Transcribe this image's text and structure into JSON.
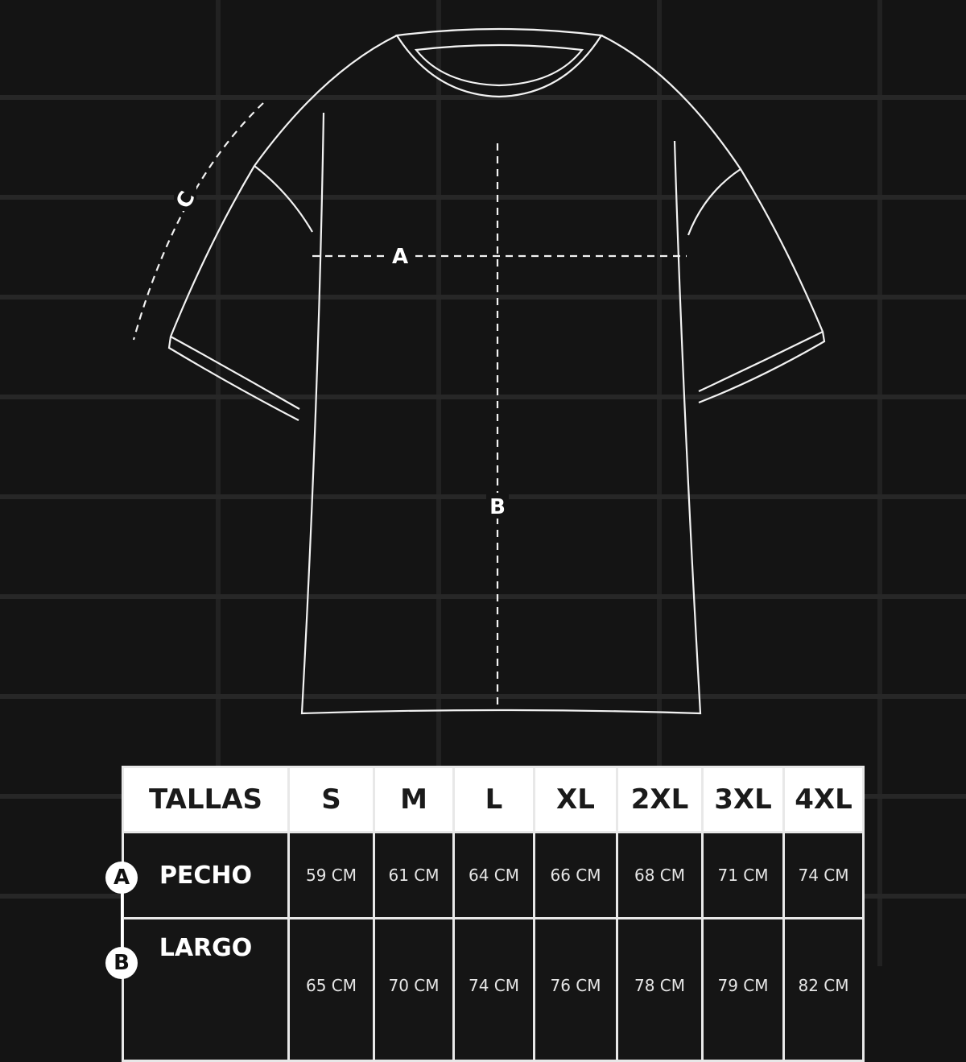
{
  "diagram": {
    "measure_labels": {
      "chest": "A",
      "length": "B",
      "sleeve": "C"
    }
  },
  "table": {
    "header_label": "TALLAS",
    "sizes": [
      "S",
      "M",
      "L",
      "XL",
      "2XL",
      "3XL",
      "4XL"
    ],
    "rows": [
      {
        "badge": "A",
        "label": "PECHO",
        "values": [
          "59 CM",
          "61 CM",
          "64 CM",
          "66 CM",
          "68 CM",
          "71 CM",
          "74 CM"
        ]
      },
      {
        "badge": "B",
        "label": "LARGO",
        "values": [
          "65 CM",
          "70 CM",
          "74 CM",
          "76 CM",
          "78 CM",
          "79 CM",
          "82 CM"
        ]
      }
    ]
  },
  "colors": {
    "background": "#141414",
    "line": "#ffffff",
    "header_bg": "#ffffff"
  }
}
